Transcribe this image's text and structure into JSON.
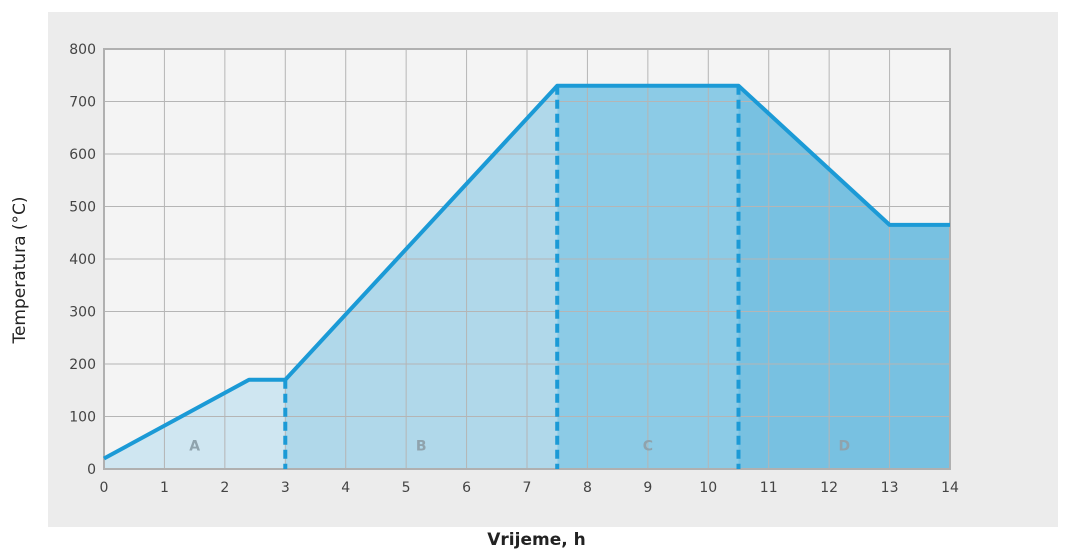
{
  "chart_data": {
    "type": "area",
    "title": "",
    "xlabel": "Vrijeme, h",
    "ylabel": "Temperatura (°C)",
    "xlim": [
      0,
      14
    ],
    "ylim": [
      0,
      800
    ],
    "x_ticks": [
      "0",
      "1",
      "2",
      "3",
      "4",
      "5",
      "6",
      "7",
      "8",
      "9",
      "10",
      "11",
      "12",
      "13",
      "14"
    ],
    "y_ticks": [
      "0",
      "100",
      "200",
      "300",
      "400",
      "500",
      "600",
      "700",
      "800"
    ],
    "grid": true,
    "series": [
      {
        "x": [
          0,
          2.4,
          3,
          7.5,
          10.5,
          13,
          14
        ],
        "y": [
          20,
          170,
          170,
          730,
          730,
          465,
          465
        ]
      }
    ],
    "segment_boundaries": [
      3,
      7.5,
      10.5
    ],
    "segments": [
      {
        "label": "A",
        "x_range": [
          0,
          3
        ]
      },
      {
        "label": "B",
        "x_range": [
          3,
          7.5
        ]
      },
      {
        "label": "C",
        "x_range": [
          7.5,
          10.5
        ]
      },
      {
        "label": "D",
        "x_range": [
          10.5,
          14
        ]
      }
    ],
    "colors": {
      "line": "#1b9ad6",
      "segment_fills": [
        "#cfe6f1",
        "#b0d8ea",
        "#8ccbe6",
        "#78c1e1"
      ],
      "grid": "#b5b5b5",
      "frame": "#b0b0b0"
    }
  }
}
